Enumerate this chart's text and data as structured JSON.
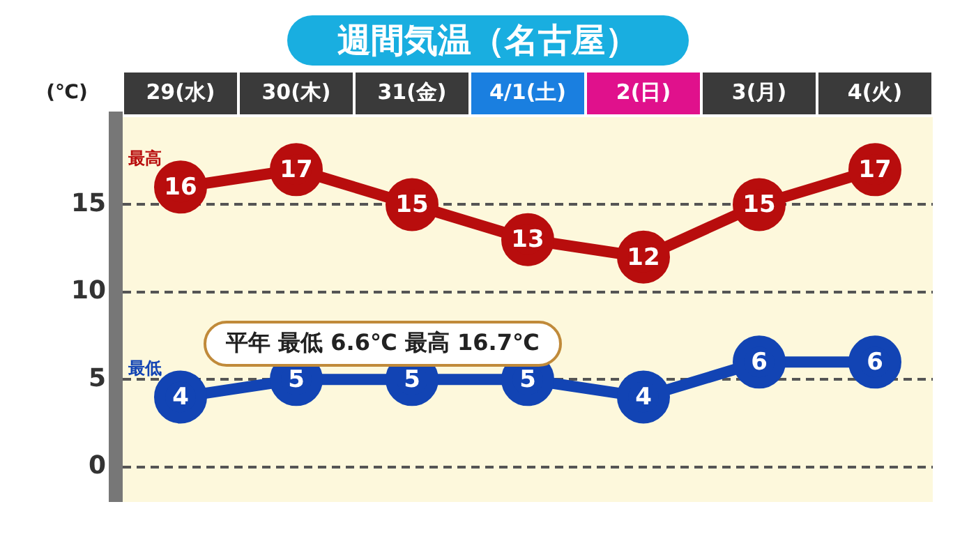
{
  "chart_data": {
    "type": "line",
    "title": "週間気温（名古屋）",
    "ylabel": "(℃)",
    "categories": [
      "29(水)",
      "30(木)",
      "31(金)",
      "4/1(土)",
      "2(日)",
      "3(月)",
      "4(火)"
    ],
    "series": [
      {
        "name": "最高",
        "color": "#b80d0d",
        "values": [
          16,
          17,
          15,
          13,
          12,
          15,
          17
        ]
      },
      {
        "name": "最低",
        "color": "#1244b4",
        "values": [
          4,
          5,
          5,
          5,
          4,
          6,
          6
        ]
      }
    ],
    "ylim": [
      -2,
      20
    ],
    "yticks": [
      0,
      5,
      10,
      15
    ],
    "grid": "y",
    "marker": "circle",
    "data_labels": true,
    "annotations": [
      "平年 最低 6.6℃ 最高 16.7℃"
    ]
  }
}
